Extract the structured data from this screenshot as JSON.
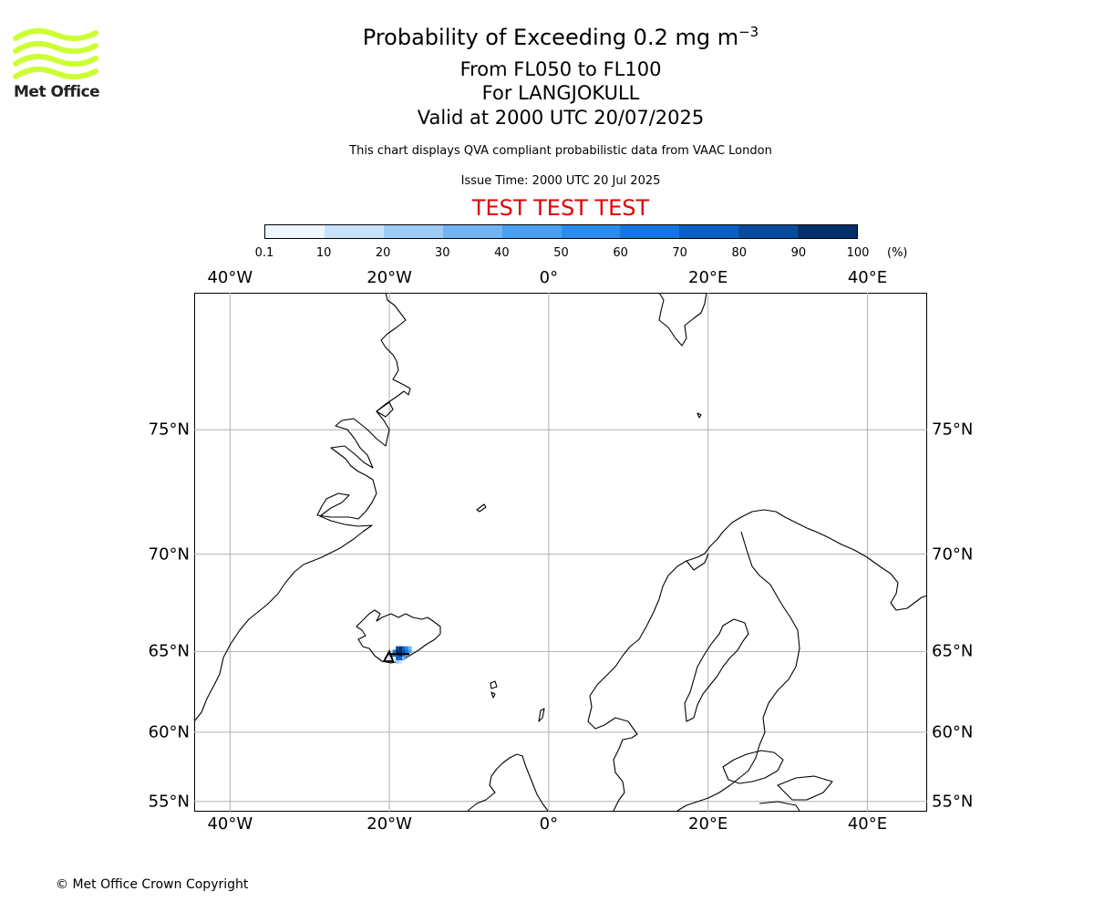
{
  "header": {
    "title_prefix": "Probability of Exceeding 0.2 mg m",
    "title_exponent": "−3",
    "line2": "From FL050 to FL100",
    "line3": "For LANGJOKULL",
    "line4": "Valid at 2000 UTC 20/07/2025",
    "description": "This chart displays QVA compliant probabilistic data from VAAC London",
    "issue_time": "Issue Time: 2000 UTC 20 Jul 2025",
    "test_banner": "TEST TEST TEST"
  },
  "logo": {
    "text": "Met Office",
    "color": "#ccff33"
  },
  "footer": {
    "copyright": "© Met Office Crown Copyright"
  },
  "colorbar": {
    "ticks": [
      "0.1",
      "10",
      "20",
      "30",
      "40",
      "50",
      "60",
      "70",
      "80",
      "90",
      "100"
    ],
    "unit": "(%)",
    "colors": [
      "#eef6ff",
      "#c8e2fb",
      "#9ccbf6",
      "#72b4f2",
      "#4aa0f0",
      "#2b8cee",
      "#1577dd",
      "#0b60c4",
      "#074c9c",
      "#03306a"
    ]
  },
  "map": {
    "lon_range": [
      -44.5,
      47.5
    ],
    "lat_range": [
      54.2,
      79.1
    ],
    "lon_gridlines": [
      -40,
      -20,
      0,
      20,
      40
    ],
    "lat_gridlines": [
      55,
      60,
      65,
      70,
      75
    ],
    "lon_labels": [
      "40°W",
      "20°W",
      "0°",
      "20°E",
      "40°E"
    ],
    "lat_labels": [
      "55°N",
      "60°N",
      "65°N",
      "70°N",
      "75°N"
    ],
    "grid_color": "#b0b0b0",
    "volcano": {
      "name": "LANGJOKULL",
      "lon": -20.0,
      "lat": 64.7
    },
    "probability_cells": [
      {
        "lon": -19.0,
        "lat": 65.2,
        "pct": 85
      },
      {
        "lon": -18.6,
        "lat": 65.2,
        "pct": 95
      },
      {
        "lon": -18.2,
        "lat": 65.2,
        "pct": 75
      },
      {
        "lon": -17.8,
        "lat": 65.2,
        "pct": 55
      },
      {
        "lon": -17.4,
        "lat": 65.2,
        "pct": 35
      },
      {
        "lon": -19.4,
        "lat": 65.0,
        "pct": 65
      },
      {
        "lon": -19.0,
        "lat": 65.0,
        "pct": 90
      },
      {
        "lon": -18.6,
        "lat": 65.0,
        "pct": 95
      },
      {
        "lon": -18.2,
        "lat": 65.0,
        "pct": 80
      },
      {
        "lon": -17.8,
        "lat": 65.0,
        "pct": 60
      },
      {
        "lon": -17.4,
        "lat": 65.0,
        "pct": 40
      },
      {
        "lon": -19.8,
        "lat": 64.8,
        "pct": 45
      },
      {
        "lon": -19.4,
        "lat": 64.8,
        "pct": 70
      },
      {
        "lon": -19.0,
        "lat": 64.8,
        "pct": 85
      },
      {
        "lon": -18.6,
        "lat": 64.8,
        "pct": 90
      },
      {
        "lon": -18.2,
        "lat": 64.8,
        "pct": 65
      },
      {
        "lon": -17.8,
        "lat": 64.8,
        "pct": 45
      },
      {
        "lon": -19.0,
        "lat": 64.6,
        "pct": 75
      },
      {
        "lon": -18.6,
        "lat": 64.6,
        "pct": 70
      },
      {
        "lon": -18.2,
        "lat": 64.6,
        "pct": 35
      },
      {
        "lon": -19.0,
        "lat": 64.4,
        "pct": 25
      },
      {
        "lon": -18.6,
        "lat": 64.4,
        "pct": 15
      }
    ]
  }
}
